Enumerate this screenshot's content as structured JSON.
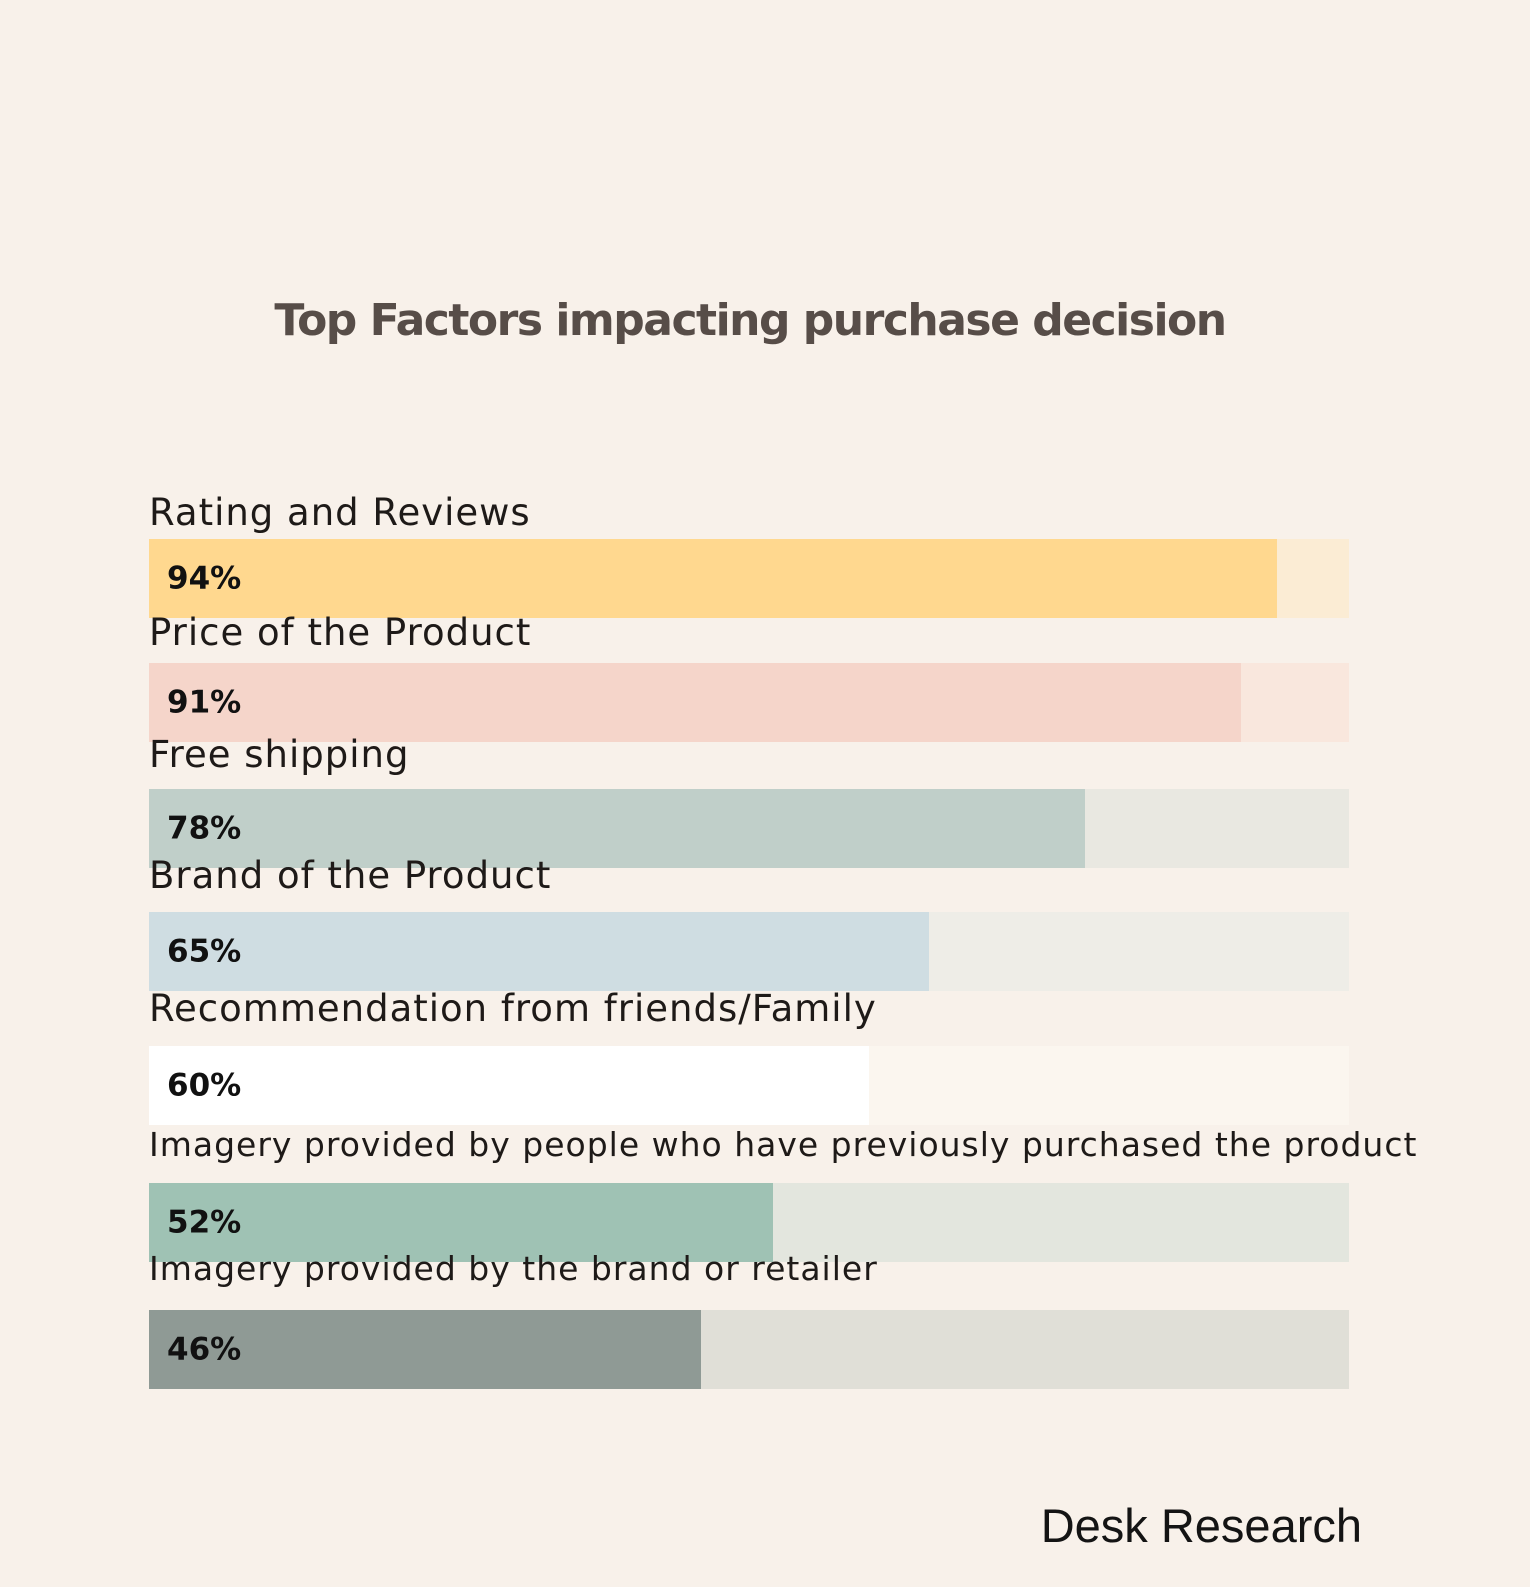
{
  "chart_data": {
    "type": "bar",
    "orientation": "horizontal",
    "title": "Top Factors impacting purchase decision",
    "xlim": [
      0,
      100
    ],
    "unit": "%",
    "categories": [
      "Rating and Reviews",
      "Price of the Product",
      "Free shipping",
      "Brand of the Product",
      "Recommendation from friends/Family",
      "Imagery provided by people who have previously purchased the product",
      "Imagery provided by the brand or retailer"
    ],
    "values": [
      94,
      91,
      78,
      65,
      60,
      52,
      46
    ],
    "value_labels": [
      "94%",
      "91%",
      "78%",
      "65%",
      "60%",
      "52%",
      "46%"
    ],
    "fill_colors": [
      "#ffd88f",
      "#f5d5ca",
      "#c0cfc9",
      "#cfdde2",
      "#ffffff",
      "#9fc2b4",
      "#8f9a95"
    ],
    "track_colors": [
      "#fbecd4",
      "#f9e7dd",
      "#e9e8e1",
      "#eeede7",
      "#fbf6ef",
      "#e3e6de",
      "#e0dfd7"
    ],
    "grid": false,
    "legend": "none"
  },
  "footer": {
    "source": "Desk Research"
  },
  "colors": {
    "background": "#f8f1ea",
    "title": "#574d48"
  }
}
